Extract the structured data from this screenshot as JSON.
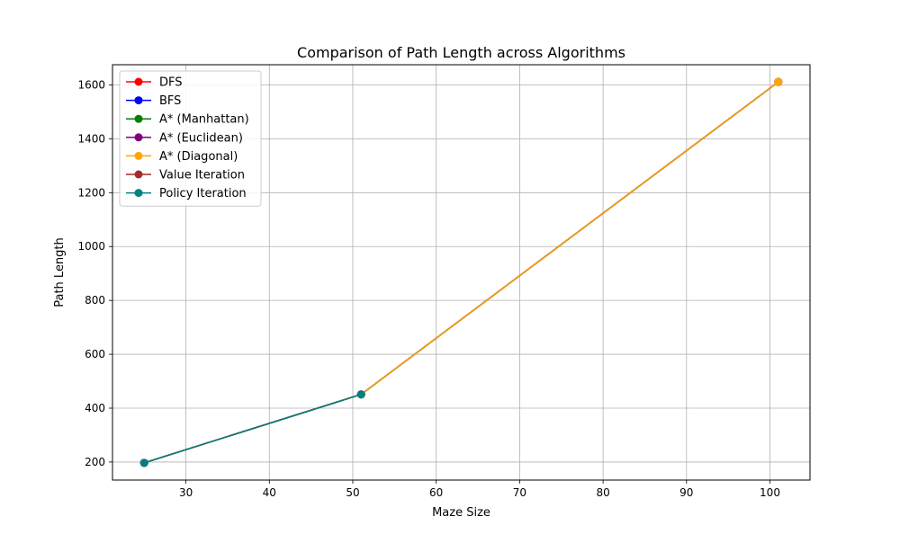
{
  "chart_data": {
    "type": "line",
    "title": "Comparison of Path Length across Algorithms",
    "xlabel": "Maze Size",
    "ylabel": "Path Length",
    "xlim": [
      21.2,
      104.8
    ],
    "ylim": [
      133,
      1675
    ],
    "xticks": [
      30,
      40,
      50,
      60,
      70,
      80,
      90,
      100
    ],
    "yticks": [
      200,
      400,
      600,
      800,
      1000,
      1200,
      1400,
      1600
    ],
    "grid": true,
    "legend_position": "upper-left",
    "series": [
      {
        "name": "DFS",
        "color": "#ff0000",
        "x": [
          25,
          51,
          101
        ],
        "y": [
          197,
          451,
          1611
        ]
      },
      {
        "name": "BFS",
        "color": "#0000ff",
        "x": [
          25,
          51,
          101
        ],
        "y": [
          197,
          451,
          1611
        ]
      },
      {
        "name": "A* (Manhattan)",
        "color": "#008000",
        "x": [
          25,
          51,
          101
        ],
        "y": [
          197,
          451,
          1611
        ]
      },
      {
        "name": "A* (Euclidean)",
        "color": "#800080",
        "x": [
          25,
          51,
          101
        ],
        "y": [
          197,
          451,
          1611
        ]
      },
      {
        "name": "A* (Diagonal)",
        "color": "#ffa500",
        "x": [
          25,
          51,
          101
        ],
        "y": [
          197,
          451,
          1611
        ]
      },
      {
        "name": "Value Iteration",
        "color": "#a52a2a",
        "x": [
          25,
          51
        ],
        "y": [
          197,
          451
        ]
      },
      {
        "name": "Policy Iteration",
        "color": "#008080",
        "x": [
          25,
          51
        ],
        "y": [
          197,
          451
        ]
      }
    ]
  }
}
